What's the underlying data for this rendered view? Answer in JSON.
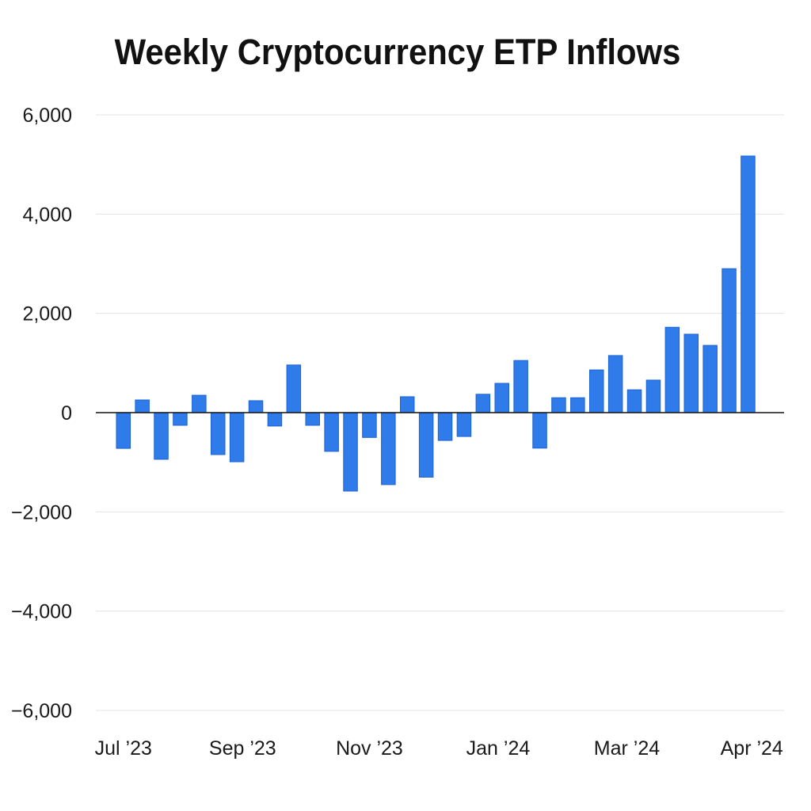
{
  "chart_data": {
    "type": "bar",
    "title": "Weekly Cryptocurrency ETP Inflows",
    "xlabel": "",
    "ylabel": "",
    "ylim": [
      -6000,
      6000
    ],
    "yticks": [
      6000,
      4000,
      2000,
      0,
      -2000,
      -4000,
      -6000
    ],
    "ytick_labels": [
      "6,000",
      "4,000",
      "2,000",
      "0",
      "−2,000",
      "−4,000",
      "−6,000"
    ],
    "grid": true,
    "legend": "none",
    "bar_color": "#2f7bea",
    "bar_edge_color": "#1a62d6",
    "xtick_labels": [
      {
        "label": "Jul ’23",
        "bar_index": 0
      },
      {
        "label": "Sep ’23",
        "bar_index": 6.3
      },
      {
        "label": "Nov ’23",
        "bar_index": 13
      },
      {
        "label": "Jan ’24",
        "bar_index": 19.8
      },
      {
        "label": "Mar ’24",
        "bar_index": 26.6
      },
      {
        "label": "Apr ’24",
        "bar_index": 33.2
      }
    ],
    "values": [
      -720,
      255,
      -940,
      -255,
      350,
      -845,
      -990,
      240,
      -270,
      960,
      -255,
      -780,
      -1580,
      -500,
      -1450,
      320,
      -1300,
      -560,
      -480,
      370,
      590,
      1050,
      -715,
      300,
      300,
      860,
      1150,
      460,
      655,
      1720,
      1580,
      1355,
      2900,
      5170
    ]
  }
}
